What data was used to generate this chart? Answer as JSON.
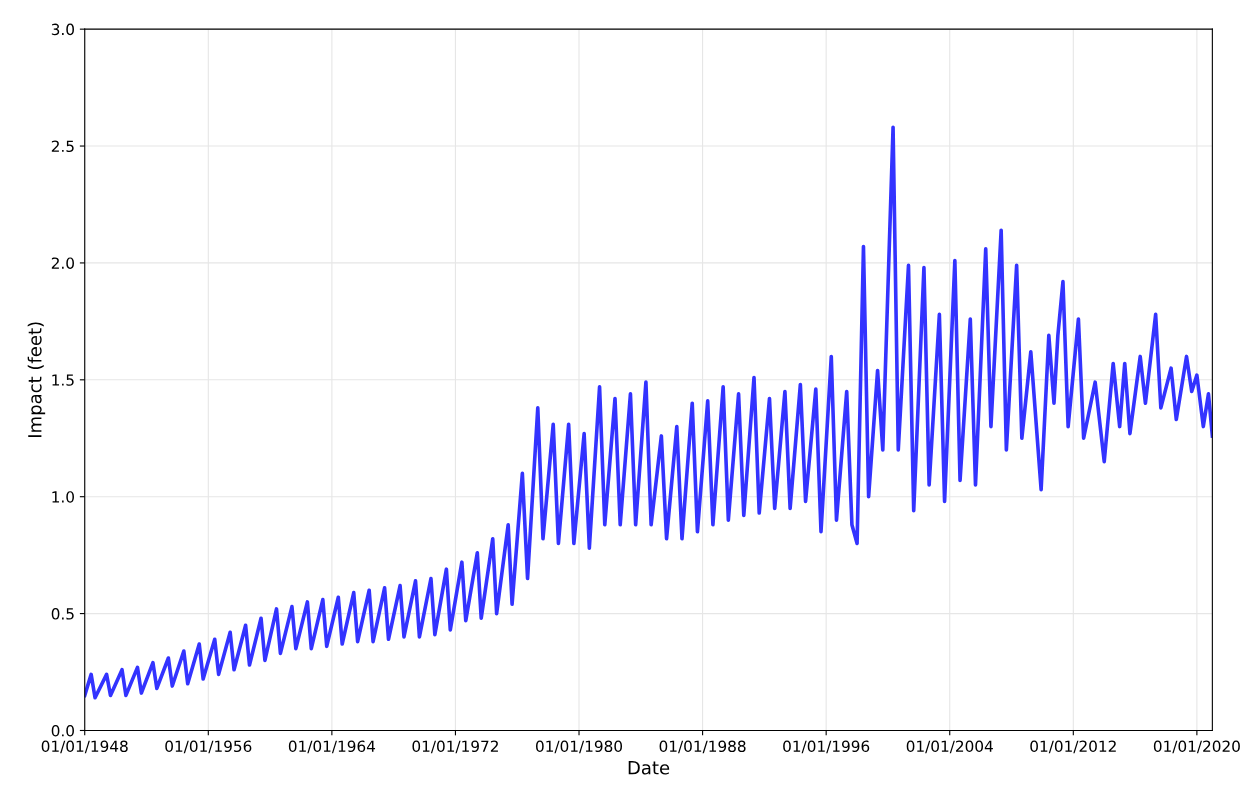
{
  "chart_data": {
    "type": "line",
    "xlabel": "Date",
    "ylabel": "Impact (feet)",
    "xlim": [
      "1948-01-01",
      "2021-01-01"
    ],
    "ylim": [
      0,
      3.0
    ],
    "xticks": [
      {
        "value": "1948-01-01",
        "label": "01/01/1948"
      },
      {
        "value": "1956-01-01",
        "label": "01/01/1956"
      },
      {
        "value": "1964-01-01",
        "label": "01/01/1964"
      },
      {
        "value": "1972-01-01",
        "label": "01/01/1972"
      },
      {
        "value": "1980-01-01",
        "label": "01/01/1980"
      },
      {
        "value": "1988-01-01",
        "label": "01/01/1988"
      },
      {
        "value": "1996-01-01",
        "label": "01/01/1996"
      },
      {
        "value": "2004-01-01",
        "label": "01/01/2004"
      },
      {
        "value": "2012-01-01",
        "label": "01/01/2012"
      },
      {
        "value": "2020-01-01",
        "label": "01/01/2020"
      }
    ],
    "yticks": [
      {
        "value": 0,
        "label": "0.0"
      },
      {
        "value": 0.5,
        "label": "0.5"
      },
      {
        "value": 1.0,
        "label": "1.0"
      },
      {
        "value": 1.5,
        "label": "1.5"
      },
      {
        "value": 2.0,
        "label": "2.0"
      },
      {
        "value": 2.5,
        "label": "2.5"
      },
      {
        "value": 3.0,
        "label": "3.0"
      }
    ],
    "grid": true,
    "marker": "none",
    "line_style": "solid",
    "series": [
      {
        "color": "#3333ff",
        "x": [
          "1948-01",
          "1948-06",
          "1948-09",
          "1949-06",
          "1949-09",
          "1950-06",
          "1950-09",
          "1951-06",
          "1951-09",
          "1952-06",
          "1952-09",
          "1953-06",
          "1953-09",
          "1954-06",
          "1954-09",
          "1955-06",
          "1955-09",
          "1956-06",
          "1956-09",
          "1957-06",
          "1957-09",
          "1958-06",
          "1958-09",
          "1959-06",
          "1959-09",
          "1960-06",
          "1960-09",
          "1961-06",
          "1961-09",
          "1962-06",
          "1962-09",
          "1963-06",
          "1963-09",
          "1964-06",
          "1964-09",
          "1965-06",
          "1965-09",
          "1966-06",
          "1966-09",
          "1967-06",
          "1967-09",
          "1968-06",
          "1968-09",
          "1969-06",
          "1969-09",
          "1970-06",
          "1970-09",
          "1971-06",
          "1971-09",
          "1972-06",
          "1972-09",
          "1973-06",
          "1973-09",
          "1974-06",
          "1974-09",
          "1975-06",
          "1975-09",
          "1976-05",
          "1976-09",
          "1977-05",
          "1977-09",
          "1978-05",
          "1978-09",
          "1979-05",
          "1979-09",
          "1980-05",
          "1980-09",
          "1981-05",
          "1981-09",
          "1982-05",
          "1982-09",
          "1983-05",
          "1983-09",
          "1984-05",
          "1984-09",
          "1985-05",
          "1985-09",
          "1986-05",
          "1986-09",
          "1987-05",
          "1987-09",
          "1988-05",
          "1988-09",
          "1989-05",
          "1989-09",
          "1990-05",
          "1990-09",
          "1991-05",
          "1991-09",
          "1992-05",
          "1992-09",
          "1993-05",
          "1993-09",
          "1994-05",
          "1994-09",
          "1995-05",
          "1995-09",
          "1996-05",
          "1996-09",
          "1997-05",
          "1997-09",
          "1998-01",
          "1998-06",
          "1998-10",
          "1999-05",
          "1999-09",
          "2000-05",
          "2000-09",
          "2001-05",
          "2001-09",
          "2002-05",
          "2002-09",
          "2003-05",
          "2003-09",
          "2004-05",
          "2004-09",
          "2005-05",
          "2005-09",
          "2006-05",
          "2006-09",
          "2007-05",
          "2007-09",
          "2008-05",
          "2008-09",
          "2009-04",
          "2009-12",
          "2010-06",
          "2010-10",
          "2011-01",
          "2011-05",
          "2011-09",
          "2012-05",
          "2012-09",
          "2013-06",
          "2014-01",
          "2014-08",
          "2015-01",
          "2015-05",
          "2015-09",
          "2016-05",
          "2016-09",
          "2017-05",
          "2017-09",
          "2018-05",
          "2018-09",
          "2019-05",
          "2019-09",
          "2020-01",
          "2020-06",
          "2020-10",
          "2021-01"
        ],
        "values": [
          0.15,
          0.24,
          0.14,
          0.24,
          0.15,
          0.26,
          0.15,
          0.27,
          0.16,
          0.29,
          0.18,
          0.31,
          0.19,
          0.34,
          0.2,
          0.37,
          0.22,
          0.39,
          0.24,
          0.42,
          0.26,
          0.45,
          0.28,
          0.48,
          0.3,
          0.52,
          0.33,
          0.53,
          0.35,
          0.55,
          0.35,
          0.56,
          0.36,
          0.57,
          0.37,
          0.59,
          0.38,
          0.6,
          0.38,
          0.61,
          0.39,
          0.62,
          0.4,
          0.64,
          0.4,
          0.65,
          0.41,
          0.69,
          0.43,
          0.72,
          0.47,
          0.76,
          0.48,
          0.82,
          0.5,
          0.88,
          0.54,
          1.1,
          0.65,
          1.38,
          0.82,
          1.31,
          0.8,
          1.31,
          0.8,
          1.27,
          0.78,
          1.47,
          0.88,
          1.42,
          0.88,
          1.44,
          0.88,
          1.49,
          0.88,
          1.26,
          0.82,
          1.3,
          0.82,
          1.4,
          0.85,
          1.41,
          0.88,
          1.47,
          0.9,
          1.44,
          0.92,
          1.51,
          0.93,
          1.42,
          0.95,
          1.45,
          0.95,
          1.48,
          0.98,
          1.46,
          0.85,
          1.6,
          0.9,
          1.45,
          0.88,
          0.8,
          2.07,
          1.0,
          1.54,
          1.2,
          2.58,
          1.2,
          1.99,
          0.94,
          1.98,
          1.05,
          1.78,
          0.98,
          2.01,
          1.07,
          1.76,
          1.05,
          2.06,
          1.3,
          2.14,
          1.2,
          1.99,
          1.25,
          1.62,
          1.03,
          1.69,
          1.4,
          1.69,
          1.92,
          1.3,
          1.76,
          1.25,
          1.49,
          1.15,
          1.57,
          1.3,
          1.57,
          1.27,
          1.6,
          1.4,
          1.78,
          1.38,
          1.55,
          1.33,
          1.6,
          1.45,
          1.52,
          1.3,
          1.44,
          1.26
        ]
      }
    ]
  }
}
